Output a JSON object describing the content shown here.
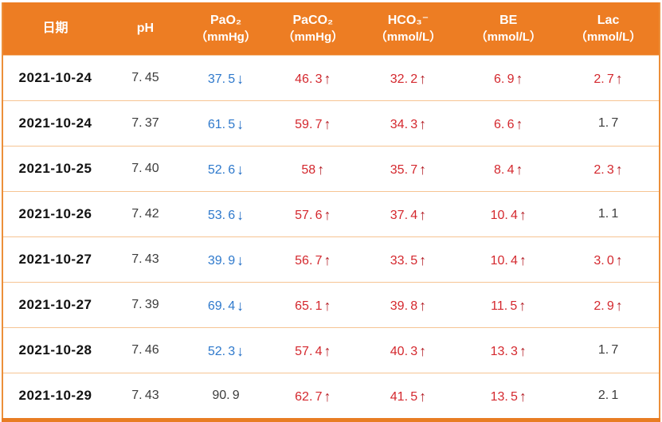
{
  "colors": {
    "header_bg": "#ed7d23",
    "outer_border": "#e87d23",
    "row_divider": "#f6c493",
    "high_value_red": "#d4282e",
    "up_arrow_red": "#b5222a",
    "low_value_blue": "#2e79cc",
    "down_arrow_blue": "#1f6bc4",
    "normal_text": "#3c3c3c"
  },
  "table": {
    "arrow_icons": {
      "up": "↑",
      "down": "↓"
    },
    "columns": [
      {
        "label": "日期",
        "sub": ""
      },
      {
        "label": "pH",
        "sub": ""
      },
      {
        "label": "PaO₂",
        "sub": "（mmHg）"
      },
      {
        "label": "PaCO₂",
        "sub": "（mmHg）"
      },
      {
        "label": "HCO₃⁻",
        "sub": "（mmol/L）"
      },
      {
        "label": "BE",
        "sub": "（mmol/L）"
      },
      {
        "label": "Lac",
        "sub": "（mmol/L）"
      }
    ],
    "rows": [
      {
        "date": "2021-10-24",
        "ph": "7.45",
        "pao2": {
          "v": "37.5",
          "dir": "down"
        },
        "paco2": {
          "v": "46.3",
          "dir": "up"
        },
        "hco3": {
          "v": "32.2",
          "dir": "up"
        },
        "be": {
          "v": "6.9",
          "dir": "up"
        },
        "lac": {
          "v": "2.7",
          "dir": "up"
        }
      },
      {
        "date": "2021-10-24",
        "ph": "7.37",
        "pao2": {
          "v": "61.5",
          "dir": "down"
        },
        "paco2": {
          "v": "59.7",
          "dir": "up"
        },
        "hco3": {
          "v": "34.3",
          "dir": "up"
        },
        "be": {
          "v": "6.6",
          "dir": "up"
        },
        "lac": {
          "v": "1.7",
          "dir": "none"
        }
      },
      {
        "date": "2021-10-25",
        "ph": "7.40",
        "pao2": {
          "v": "52.6",
          "dir": "down"
        },
        "paco2": {
          "v": "58",
          "dir": "up"
        },
        "hco3": {
          "v": "35.7",
          "dir": "up"
        },
        "be": {
          "v": "8.4",
          "dir": "up"
        },
        "lac": {
          "v": "2.3",
          "dir": "up"
        }
      },
      {
        "date": "2021-10-26",
        "ph": "7.42",
        "pao2": {
          "v": "53.6",
          "dir": "down"
        },
        "paco2": {
          "v": "57.6",
          "dir": "up"
        },
        "hco3": {
          "v": "37.4",
          "dir": "up"
        },
        "be": {
          "v": "10.4",
          "dir": "up"
        },
        "lac": {
          "v": "1.1",
          "dir": "none"
        }
      },
      {
        "date": "2021-10-27",
        "ph": "7.43",
        "pao2": {
          "v": "39.9",
          "dir": "down"
        },
        "paco2": {
          "v": "56.7",
          "dir": "up"
        },
        "hco3": {
          "v": "33.5",
          "dir": "up"
        },
        "be": {
          "v": "10.4",
          "dir": "up"
        },
        "lac": {
          "v": "3.0",
          "dir": "up"
        }
      },
      {
        "date": "2021-10-27",
        "ph": "7.39",
        "pao2": {
          "v": "69.4",
          "dir": "down"
        },
        "paco2": {
          "v": "65.1",
          "dir": "up"
        },
        "hco3": {
          "v": "39.8",
          "dir": "up"
        },
        "be": {
          "v": "11.5",
          "dir": "up"
        },
        "lac": {
          "v": "2.9",
          "dir": "up"
        }
      },
      {
        "date": "2021-10-28",
        "ph": "7.46",
        "pao2": {
          "v": "52.3",
          "dir": "down"
        },
        "paco2": {
          "v": "57.4",
          "dir": "up"
        },
        "hco3": {
          "v": "40.3",
          "dir": "up"
        },
        "be": {
          "v": "13.3",
          "dir": "up"
        },
        "lac": {
          "v": "1.7",
          "dir": "none"
        }
      },
      {
        "date": "2021-10-29",
        "ph": "7.43",
        "pao2": {
          "v": "90.9",
          "dir": "none"
        },
        "paco2": {
          "v": "62.7",
          "dir": "up"
        },
        "hco3": {
          "v": "41.5",
          "dir": "up"
        },
        "be": {
          "v": "13.5",
          "dir": "up"
        },
        "lac": {
          "v": "2.1",
          "dir": "none"
        }
      }
    ]
  },
  "chart_data": {
    "type": "table",
    "title": "",
    "columns": [
      "日期",
      "pH",
      "PaO₂（mmHg）",
      "PaCO₂（mmHg）",
      "HCO₃⁻（mmol/L）",
      "BE（mmol/L）",
      "Lac（mmol/L）"
    ],
    "rows": [
      [
        "2021-10-24",
        "7.45",
        "37.5↓",
        "46.3↑",
        "32.2↑",
        "6.9↑",
        "2.7↑"
      ],
      [
        "2021-10-24",
        "7.37",
        "61.5↓",
        "59.7↑",
        "34.3↑",
        "6.6↑",
        "1.7"
      ],
      [
        "2021-10-25",
        "7.40",
        "52.6↓",
        "58↑",
        "35.7↑",
        "8.4↑",
        "2.3↑"
      ],
      [
        "2021-10-26",
        "7.42",
        "53.6↓",
        "57.6↑",
        "37.4↑",
        "10.4↑",
        "1.1"
      ],
      [
        "2021-10-27",
        "7.43",
        "39.9↓",
        "56.7↑",
        "33.5↑",
        "10.4↑",
        "3.0↑"
      ],
      [
        "2021-10-27",
        "7.39",
        "69.4↓",
        "65.1↑",
        "39.8↑",
        "11.5↑",
        "2.9↑"
      ],
      [
        "2021-10-28",
        "7.46",
        "52.3↓",
        "57.4↑",
        "40.3↑",
        "13.3↑",
        "1.7"
      ],
      [
        "2021-10-29",
        "7.43",
        "90.9",
        "62.7↑",
        "41.5↑",
        "13.5↑",
        "2.1"
      ]
    ]
  }
}
